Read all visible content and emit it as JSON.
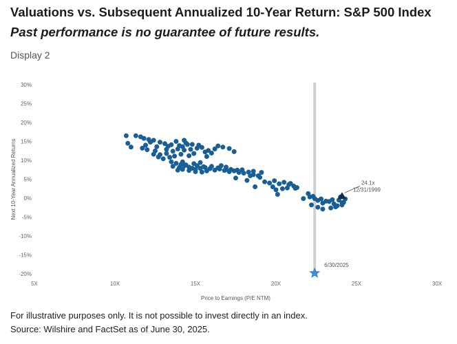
{
  "header": {
    "title": "Valuations vs. Subsequent Annualized 10-Year Return: S&P 500 Index",
    "subtitle": "Past performance is no guarantee of future results.",
    "display": "Display 2"
  },
  "footer": {
    "note": "For illustrative purposes only. It is not possible to invest directly in an index.",
    "source": "Source: Wilshire and FactSet as of June 30, 2025."
  },
  "colors": {
    "points": "#1a5e96",
    "vline": "#d0d0d0",
    "star": "#3a8fd6",
    "axis_text": "#666666"
  },
  "chart_data": {
    "type": "scatter",
    "xlabel": "Price to Earnings (P/E NTM)",
    "ylabel": "Next 10-Year Annualized Returns",
    "xlim": [
      5,
      30
    ],
    "ylim": [
      -20,
      30
    ],
    "x_ticks": [
      "5X",
      "10X",
      "15X",
      "20X",
      "25X",
      "30X"
    ],
    "y_ticks": [
      "30%",
      "25%",
      "20%",
      "15%",
      "10%",
      "5%",
      "0%",
      "-5%",
      "-10%",
      "-15%",
      "-20%"
    ],
    "grid": false,
    "reference_line": {
      "x": 22.4,
      "label": "6/30/2025"
    },
    "annotation": {
      "x": 24.1,
      "y": 0.5,
      "line1": "24.1x",
      "line2": "12/31/1999"
    },
    "points": [
      [
        10.7,
        16.5
      ],
      [
        11.3,
        16.5
      ],
      [
        11.6,
        16.2
      ],
      [
        11.8,
        15.8
      ],
      [
        12.1,
        15.5
      ],
      [
        12.4,
        15.3
      ],
      [
        12.8,
        14.8
      ],
      [
        13.1,
        14.4
      ],
      [
        13.5,
        14.1
      ],
      [
        13.8,
        15.0
      ],
      [
        14.2,
        13.6
      ],
      [
        14.5,
        14.2
      ],
      [
        14.0,
        13.9
      ],
      [
        13.3,
        13.7
      ],
      [
        12.6,
        13.6
      ],
      [
        12.2,
        14.8
      ],
      [
        11.9,
        14.0
      ],
      [
        10.8,
        14.5
      ],
      [
        11.0,
        13.5
      ],
      [
        11.7,
        13.2
      ],
      [
        12.0,
        12.8
      ],
      [
        12.5,
        12.5
      ],
      [
        12.8,
        11.5
      ],
      [
        13.2,
        11.8
      ],
      [
        13.6,
        12.4
      ],
      [
        13.9,
        13.0
      ],
      [
        14.3,
        12.7
      ],
      [
        14.7,
        12.9
      ],
      [
        15.1,
        13.2
      ],
      [
        15.4,
        13.4
      ],
      [
        15.8,
        12.6
      ],
      [
        16.2,
        13.0
      ],
      [
        16.4,
        13.8
      ],
      [
        16.7,
        13.5
      ],
      [
        17.1,
        13.1
      ],
      [
        17.4,
        12.3
      ],
      [
        14.9,
        11.8
      ],
      [
        14.6,
        11.2
      ],
      [
        14.1,
        11.6
      ],
      [
        13.7,
        11.1
      ],
      [
        13.4,
        10.8
      ],
      [
        13.0,
        10.4
      ],
      [
        12.7,
        10.9
      ],
      [
        12.4,
        11.6
      ],
      [
        14.3,
        15.3
      ],
      [
        14.4,
        14.6
      ],
      [
        14.8,
        14.2
      ],
      [
        15.2,
        14.0
      ],
      [
        15.6,
        12.2
      ],
      [
        16.0,
        11.9
      ],
      [
        13.5,
        9.6
      ],
      [
        13.8,
        9.2
      ],
      [
        14.1,
        8.9
      ],
      [
        14.3,
        8.5
      ],
      [
        14.6,
        8.2
      ],
      [
        14.8,
        7.9
      ],
      [
        15.0,
        7.6
      ],
      [
        15.3,
        7.9
      ],
      [
        15.6,
        8.1
      ],
      [
        15.9,
        7.8
      ],
      [
        16.2,
        7.4
      ],
      [
        16.5,
        7.7
      ],
      [
        16.8,
        7.3
      ],
      [
        17.1,
        7.0
      ],
      [
        17.4,
        7.2
      ],
      [
        17.7,
        6.8
      ],
      [
        18.0,
        6.6
      ],
      [
        18.3,
        6.9
      ],
      [
        18.6,
        6.2
      ],
      [
        18.9,
        5.9
      ],
      [
        14.2,
        7.6
      ],
      [
        14.6,
        7.3
      ],
      [
        15.0,
        7.0
      ],
      [
        15.4,
        6.9
      ],
      [
        15.7,
        7.2
      ],
      [
        14.0,
        8.1
      ],
      [
        14.4,
        8.8
      ],
      [
        15.1,
        8.6
      ],
      [
        15.5,
        8.3
      ],
      [
        16.0,
        8.4
      ],
      [
        16.4,
        8.0
      ],
      [
        16.9,
        8.2
      ],
      [
        17.2,
        7.6
      ],
      [
        17.6,
        7.4
      ],
      [
        13.9,
        7.4
      ],
      [
        14.9,
        9.1
      ],
      [
        15.3,
        9.4
      ],
      [
        13.6,
        8.4
      ],
      [
        14.2,
        9.6
      ],
      [
        16.6,
        8.6
      ],
      [
        17.9,
        7.5
      ],
      [
        18.6,
        7.1
      ],
      [
        19.0,
        5.5
      ],
      [
        19.3,
        4.3
      ],
      [
        19.6,
        4.0
      ],
      [
        19.9,
        4.6
      ],
      [
        20.2,
        3.8
      ],
      [
        20.5,
        4.2
      ],
      [
        20.8,
        3.6
      ],
      [
        21.1,
        3.2
      ],
      [
        21.3,
        2.8
      ],
      [
        19.1,
        6.8
      ],
      [
        18.7,
        3.0
      ],
      [
        20.0,
        2.2
      ],
      [
        20.4,
        2.5
      ],
      [
        20.7,
        2.7
      ],
      [
        20.9,
        3.9
      ],
      [
        21.2,
        2.6
      ],
      [
        20.1,
        1.0
      ],
      [
        22.1,
        0.3
      ],
      [
        22.4,
        -0.1
      ],
      [
        22.6,
        -0.6
      ],
      [
        22.9,
        -1.3
      ],
      [
        23.1,
        -0.8
      ],
      [
        23.3,
        -0.9
      ],
      [
        23.6,
        -1.5
      ],
      [
        23.8,
        -2.0
      ],
      [
        24.1,
        -1.8
      ],
      [
        24.2,
        -1.1
      ],
      [
        24.3,
        -0.2
      ],
      [
        24.0,
        0.3
      ],
      [
        23.9,
        -0.5
      ],
      [
        23.5,
        -0.4
      ],
      [
        22.8,
        -0.2
      ],
      [
        22.3,
        0.5
      ],
      [
        22.0,
        1.2
      ],
      [
        21.7,
        -0.1
      ],
      [
        22.2,
        -1.8
      ],
      [
        22.6,
        -2.4
      ],
      [
        22.9,
        -2.9
      ],
      [
        23.4,
        -2.6
      ],
      [
        23.7,
        -2.3
      ],
      [
        24.1,
        -1.2
      ],
      [
        13.2,
        12.9
      ],
      [
        15.7,
        11.0
      ],
      [
        16.9,
        7.6
      ],
      [
        17.5,
        5.3
      ],
      [
        18.2,
        4.7
      ],
      [
        18.4,
        5.9
      ],
      [
        19.8,
        3.0
      ]
    ]
  }
}
